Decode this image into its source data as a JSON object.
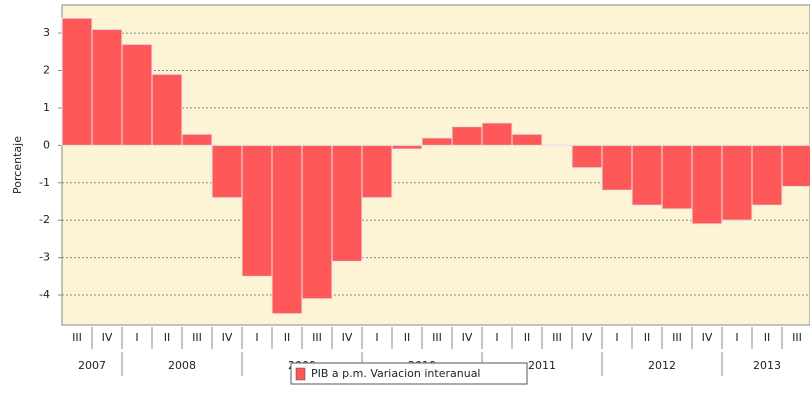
{
  "chart_data": {
    "type": "bar",
    "y_label": "Porcentaje",
    "categories": [
      "III",
      "IV",
      "I",
      "II",
      "III",
      "IV",
      "I",
      "II",
      "III",
      "IV",
      "I",
      "II",
      "III",
      "IV",
      "I",
      "II",
      "III",
      "IV",
      "I",
      "II",
      "III",
      "IV",
      "I",
      "II",
      "III"
    ],
    "years": [
      "2007",
      "2008",
      "2009",
      "2010",
      "2011",
      "2012",
      "2013"
    ],
    "series": [
      {
        "name": "PIB a p.m. Variacion interanual",
        "color": "#ff5858",
        "values": [
          3.4,
          3.1,
          2.7,
          1.9,
          0.3,
          -1.4,
          -3.5,
          -4.5,
          -4.1,
          -3.1,
          -1.4,
          -0.1,
          0.2,
          0.5,
          0.6,
          0.3,
          0.0,
          -0.6,
          -1.2,
          -1.6,
          -1.7,
          -2.1,
          -2.0,
          -1.6,
          -1.1
        ]
      }
    ],
    "ylim": [
      -4.8,
      3.75
    ],
    "yticks": [
      -4,
      -3,
      -2,
      -1,
      0,
      1,
      2,
      3
    ],
    "grid": true
  }
}
